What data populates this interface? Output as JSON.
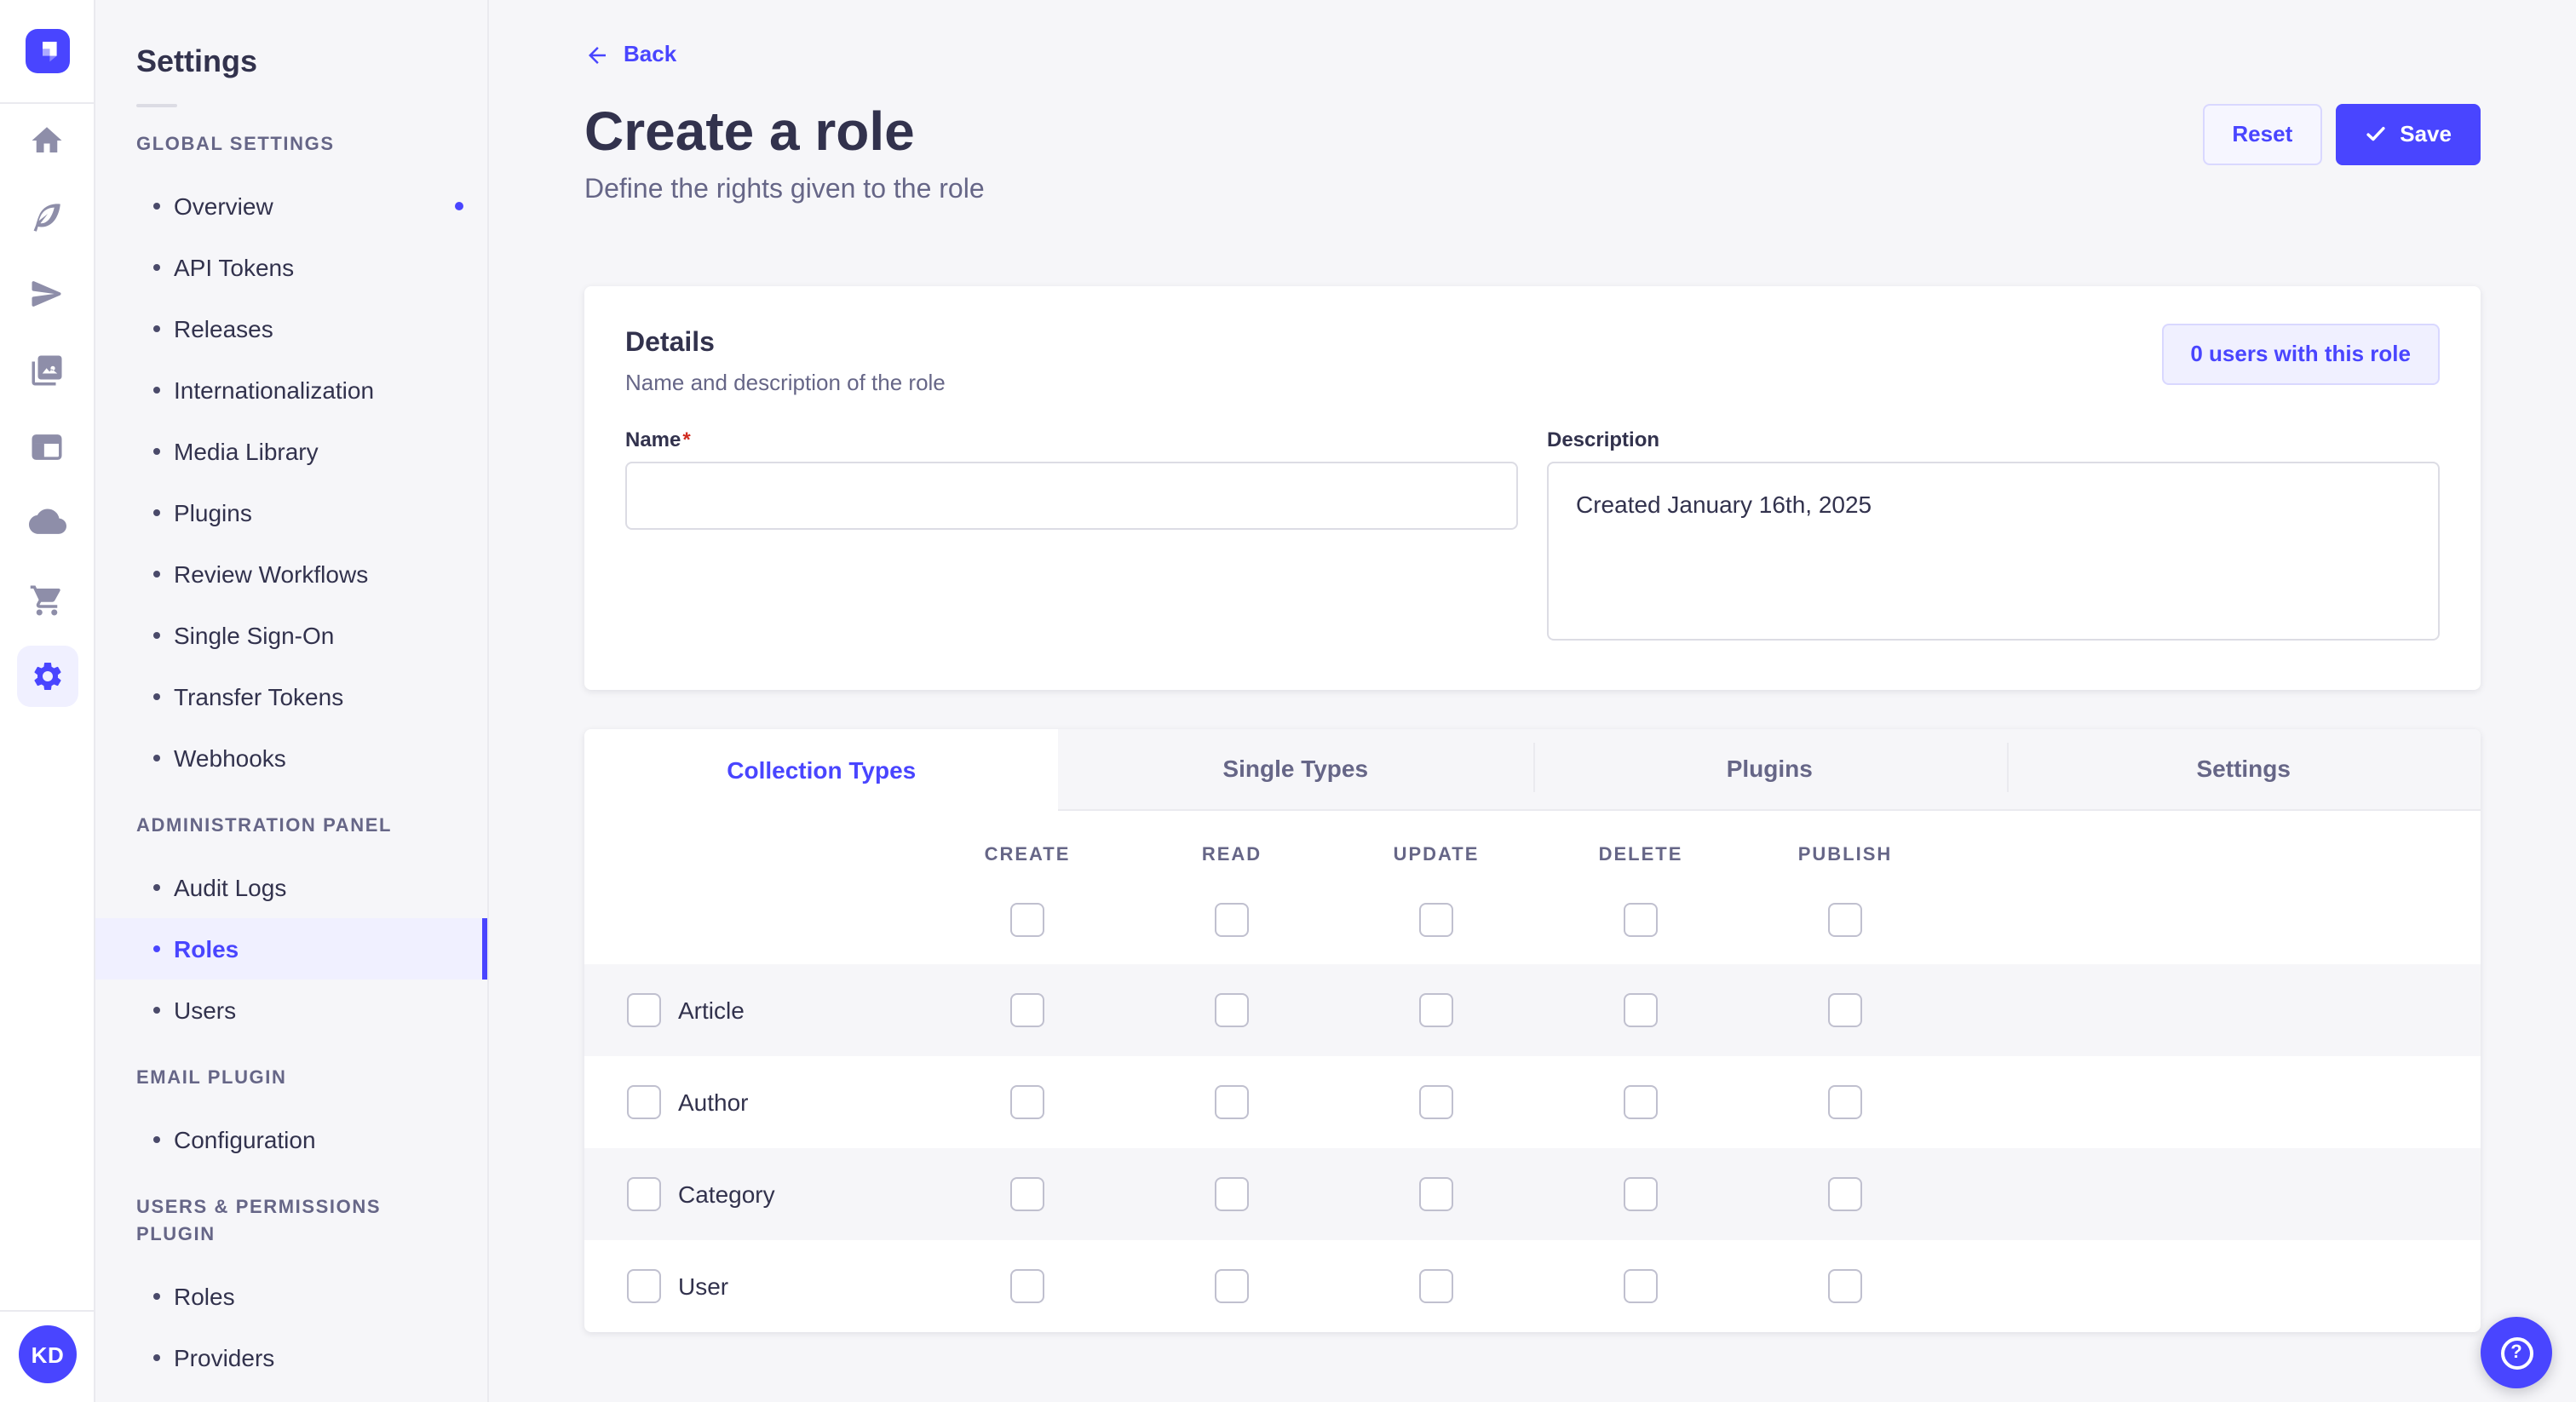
{
  "app_title": "Settings",
  "icon_rail": {
    "logo_icon": "strapi-logo-icon",
    "icons": [
      "home-icon",
      "feather-icon",
      "send-icon",
      "media-library-icon",
      "content-manager-icon",
      "cloud-icon",
      "marketplace-cart-icon",
      "settings-gear-icon"
    ],
    "active_icon": "settings-gear-icon",
    "avatar_initials": "KD"
  },
  "sidebar": {
    "title": "Settings",
    "sections": [
      {
        "label": "GLOBAL SETTINGS",
        "items": [
          {
            "label": "Overview",
            "notification": true
          },
          {
            "label": "API Tokens"
          },
          {
            "label": "Releases"
          },
          {
            "label": "Internationalization"
          },
          {
            "label": "Media Library"
          },
          {
            "label": "Plugins"
          },
          {
            "label": "Review Workflows"
          },
          {
            "label": "Single Sign-On"
          },
          {
            "label": "Transfer Tokens"
          },
          {
            "label": "Webhooks"
          }
        ]
      },
      {
        "label": "ADMINISTRATION PANEL",
        "items": [
          {
            "label": "Audit Logs"
          },
          {
            "label": "Roles",
            "active": true
          },
          {
            "label": "Users"
          }
        ]
      },
      {
        "label": "EMAIL PLUGIN",
        "items": [
          {
            "label": "Configuration"
          }
        ]
      },
      {
        "label": "USERS & PERMISSIONS PLUGIN",
        "items": [
          {
            "label": "Roles"
          },
          {
            "label": "Providers"
          }
        ]
      }
    ]
  },
  "header": {
    "back_label": "Back",
    "title": "Create a role",
    "subtitle": "Define the rights given to the role",
    "reset_label": "Reset",
    "save_label": "Save",
    "save_icon": "check-icon",
    "back_icon": "arrow-left-icon"
  },
  "details": {
    "title": "Details",
    "subtitle": "Name and description of the role",
    "users_button": "0 users with this role",
    "name_label": "Name",
    "name_required": "*",
    "name_value": "",
    "description_label": "Description",
    "description_value": "Created January 16th, 2025"
  },
  "permissions": {
    "tabs": [
      {
        "label": "Collection Types",
        "active": true
      },
      {
        "label": "Single Types"
      },
      {
        "label": "Plugins"
      },
      {
        "label": "Settings"
      }
    ],
    "columns": [
      "CREATE",
      "READ",
      "UPDATE",
      "DELETE",
      "PUBLISH"
    ],
    "rows": [
      {
        "label": "Article",
        "selected": false,
        "checks": [
          false,
          false,
          false,
          false,
          false
        ]
      },
      {
        "label": "Author",
        "selected": false,
        "checks": [
          false,
          false,
          false,
          false,
          false
        ]
      },
      {
        "label": "Category",
        "selected": false,
        "checks": [
          false,
          false,
          false,
          false,
          false
        ]
      },
      {
        "label": "User",
        "selected": false,
        "checks": [
          false,
          false,
          false,
          false,
          false
        ]
      }
    ]
  },
  "floating_help": {
    "icon": "question-mark-icon",
    "glyph": "?"
  },
  "colors": {
    "primary": "#4945FF",
    "primary_light": "#F0F0FF",
    "primary_border": "#D9D8FF",
    "text_dark": "#32324D",
    "text_gray": "#666687",
    "icon_gray": "#8E8EA9",
    "border": "#EAEAEF",
    "input_border": "#DCDCE4",
    "checkbox_border": "#C0C0CF",
    "background": "#F6F6F9",
    "card": "#FFFFFF",
    "required_red": "#D02B20"
  }
}
